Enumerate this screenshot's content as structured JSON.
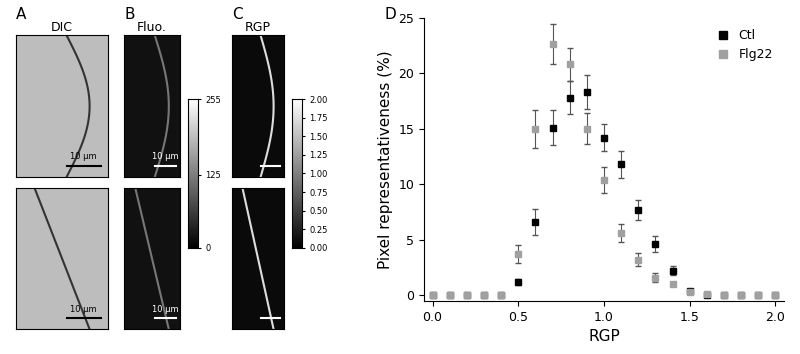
{
  "panels": [
    {
      "label": "A",
      "title": "DIC",
      "style": "dic",
      "images": [
        {
          "scale_bar": true,
          "scale_bar_label": "10 µm"
        },
        {
          "scale_bar": true,
          "scale_bar_label": "10 µm"
        }
      ]
    },
    {
      "label": "B",
      "title": "Fluo.",
      "style": "fluo",
      "images": [
        {
          "scale_bar": true,
          "scale_bar_label": "10 µm"
        },
        {
          "scale_bar": true,
          "scale_bar_label": "10 µm"
        }
      ],
      "colorbar": {
        "range": [
          0,
          255
        ],
        "ticks": [
          0,
          125,
          255
        ]
      }
    },
    {
      "label": "C",
      "title": "RGP",
      "style": "rgp",
      "images": [
        {
          "scale_bar": true
        },
        {
          "scale_bar": true
        }
      ],
      "colorbar": {
        "range": [
          0,
          2
        ],
        "ticks": [
          {
            "value": 0,
            "label": "0.00"
          },
          {
            "value": 0.25,
            "label": "0.25"
          },
          {
            "value": 0.5,
            "label": "0.50"
          },
          {
            "value": 0.75,
            "label": "0.75"
          },
          {
            "value": 1,
            "label": "1.00"
          },
          {
            "value": 1.25,
            "label": "1.25"
          },
          {
            "value": 1.5,
            "label": "1.50"
          },
          {
            "value": 1.75,
            "label": "1.75"
          },
          {
            "value": 2,
            "label": "2.00"
          }
        ]
      }
    }
  ],
  "chart_data": {
    "type": "scatter",
    "panel_label": "D",
    "x_label": "RGP",
    "y_label": "Pixel representativeness (%)",
    "x": [
      0.0,
      0.1,
      0.2,
      0.3,
      0.4,
      0.5,
      0.6,
      0.7,
      0.8,
      0.9,
      1.0,
      1.1,
      1.2,
      1.3,
      1.4,
      1.5,
      1.6,
      1.7,
      1.8,
      1.9,
      2.0
    ],
    "series": [
      {
        "name": "Ctl",
        "color": "#000000",
        "marker": "square",
        "values": [
          0,
          0,
          0,
          0,
          0,
          1.2,
          6.6,
          15.1,
          17.8,
          18.3,
          14.2,
          11.8,
          7.7,
          4.6,
          2.2,
          0.4,
          0,
          0,
          0,
          0,
          0
        ],
        "error": [
          0,
          0,
          0,
          0,
          0,
          0.3,
          1.2,
          1.6,
          1.5,
          1.5,
          1.2,
          1.2,
          0.9,
          0.7,
          0.4,
          0.2,
          0,
          0,
          0,
          0,
          0
        ]
      },
      {
        "name": "Flg22",
        "color": "#a0a0a0",
        "marker": "square",
        "values": [
          0,
          0,
          0,
          0,
          0,
          3.7,
          15.0,
          22.6,
          20.8,
          15.0,
          10.4,
          5.6,
          3.2,
          1.6,
          1.0,
          0.3,
          0.1,
          0,
          0,
          0,
          0
        ],
        "error": [
          0,
          0,
          0,
          0,
          0,
          0.8,
          1.7,
          1.8,
          1.5,
          1.4,
          1.2,
          0.8,
          0.6,
          0.4,
          0.2,
          0.1,
          0,
          0,
          0,
          0,
          0
        ]
      }
    ],
    "xlim": [
      -0.05,
      2.05
    ],
    "xticks": [
      {
        "value": 0,
        "label": "0.0"
      },
      {
        "value": 0.5,
        "label": "0.5"
      },
      {
        "value": 1,
        "label": "1.0"
      },
      {
        "value": 1.5,
        "label": "1.5"
      },
      {
        "value": 2,
        "label": "2.0"
      }
    ],
    "ylim": [
      -0.5,
      25
    ],
    "yticks": [
      0,
      5,
      10,
      15,
      20,
      25
    ],
    "legend": "upper right"
  }
}
